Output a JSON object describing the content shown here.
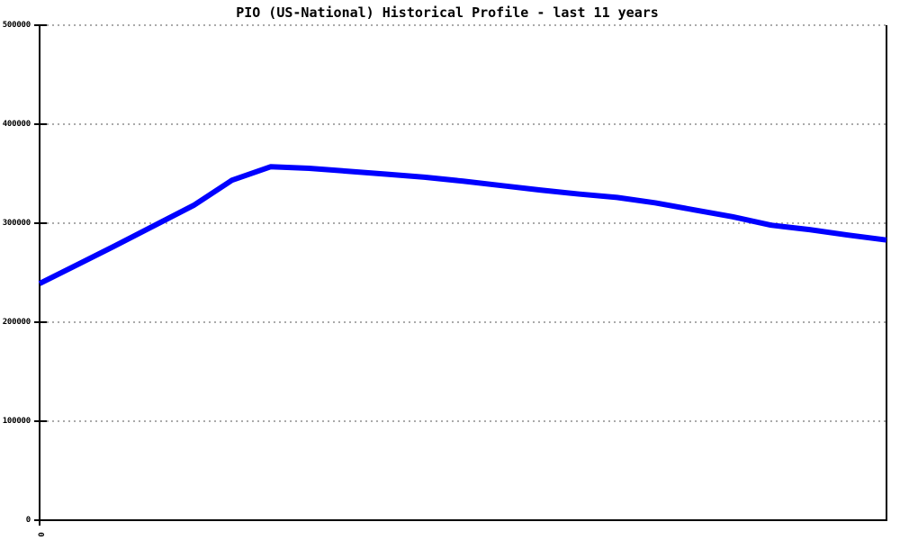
{
  "page": {
    "background": "#ffffff"
  },
  "chart_data": {
    "type": "line",
    "title": "PIO (US-National) Historical Profile - last 11 years",
    "xlabel": "",
    "ylabel": "",
    "xlim": [
      0,
      11
    ],
    "ylim": [
      0,
      500000
    ],
    "x_ticks": [
      0
    ],
    "x_tick_labels": [
      "0"
    ],
    "y_ticks": [
      0,
      100000,
      200000,
      300000,
      400000,
      500000
    ],
    "y_tick_labels": [
      "0",
      "100000",
      "200000",
      "300000",
      "400000",
      "500000"
    ],
    "grid": "horizontal-dotted",
    "legend": "none",
    "series": [
      {
        "name": "PIO (US-National)",
        "x": [
          0,
          0.5,
          1,
          1.5,
          2,
          2.5,
          3,
          3.5,
          4,
          4.5,
          5,
          5.5,
          6,
          6.5,
          7,
          7.5,
          8,
          8.5,
          9,
          9.5,
          10,
          10.5,
          11
        ],
        "values": [
          239000,
          258500,
          278000,
          298000,
          318000,
          343500,
          357000,
          355500,
          352500,
          349500,
          346500,
          342500,
          338000,
          333500,
          329500,
          326000,
          320500,
          313500,
          306500,
          298000,
          293500,
          288000,
          283000
        ]
      }
    ],
    "colors": {
      "line": "#0000ff",
      "grid": "#aaaaaa",
      "axis": "#000000",
      "text": "#000000",
      "background": "#ffffff"
    }
  }
}
